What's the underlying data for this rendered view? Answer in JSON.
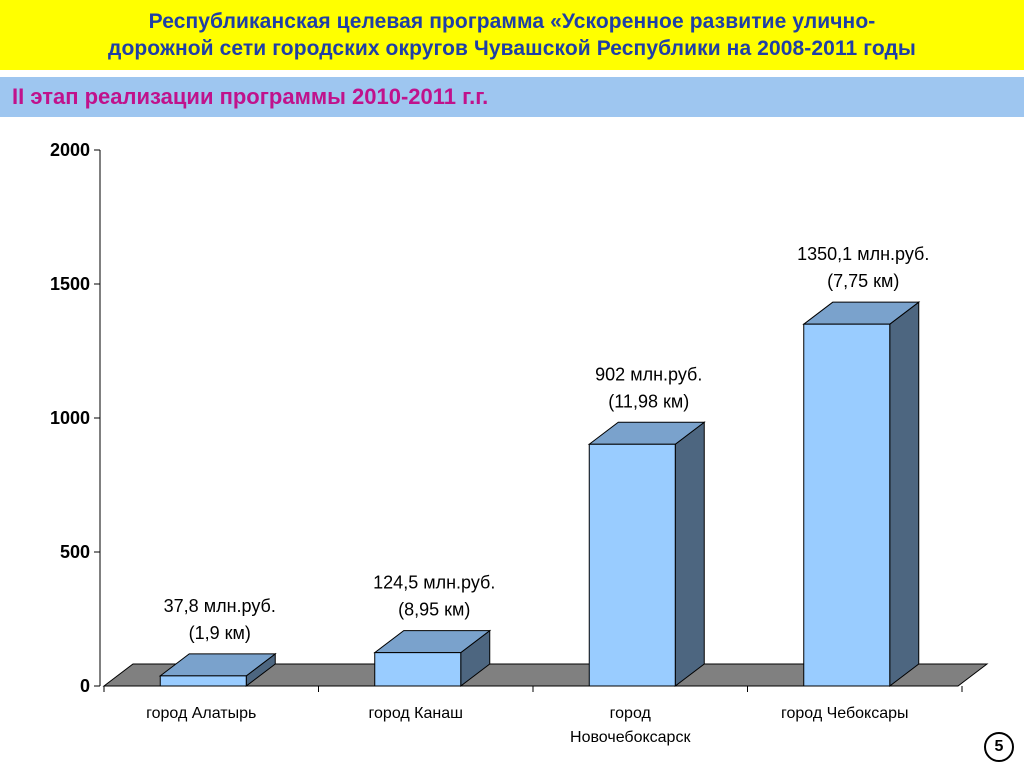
{
  "header": {
    "title_line1": "Республиканская целевая программа «Ускоренное развитие улично-",
    "title_line2": "дорожной сети городских округов Чувашской Республики на 2008-2011 годы",
    "stage": "II этап реализации программы 2010-2011 г.г."
  },
  "colors": {
    "title_band": "#ffff00",
    "title_text": "#1f3fa6",
    "stage_band": "#9ec6f0",
    "stage_text": "#c0128c",
    "bar_front": "#99ccff",
    "bar_top": "#7aa2cc",
    "bar_side": "#4d6680",
    "floor": "#808080"
  },
  "chart_data": {
    "type": "bar",
    "style": "3d-column",
    "categories": [
      [
        "город Алатырь"
      ],
      [
        "город Канаш"
      ],
      [
        "город",
        "Новочебоксарск"
      ],
      [
        "город Чебоксары"
      ]
    ],
    "values": [
      37.8,
      124.5,
      902,
      1350.1
    ],
    "data_labels": [
      [
        "37,8 млн.руб.",
        "(1,9 км)"
      ],
      [
        "124,5 млн.руб.",
        "(8,95 км)"
      ],
      [
        "902 млн.руб.",
        "(11,98 км)"
      ],
      [
        "1350,1 млн.руб.",
        "(7,75 км)"
      ]
    ],
    "y_ticks": [
      0,
      500,
      1000,
      1500,
      2000
    ],
    "ylim": [
      0,
      2000
    ],
    "grid": false,
    "legend": "none"
  },
  "footer": {
    "page_number": "5"
  }
}
